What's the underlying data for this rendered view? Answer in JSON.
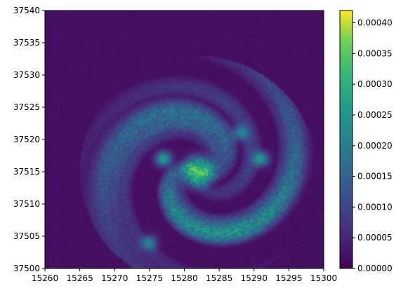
{
  "chart_data": {
    "type": "heatmap",
    "title": "",
    "xlabel": "",
    "ylabel": "",
    "xlim": [
      15260,
      15300
    ],
    "ylim": [
      37500,
      37540
    ],
    "x_ticks": [
      "15260",
      "15265",
      "15270",
      "15275",
      "15280",
      "15285",
      "15290",
      "15295",
      "15300"
    ],
    "y_ticks": [
      "37500",
      "37505",
      "37510",
      "37515",
      "37520",
      "37525",
      "37530",
      "37535",
      "37540"
    ],
    "colormap": "viridis",
    "colorbar": {
      "range": [
        0,
        0.00042
      ],
      "ticks": [
        "0.00000",
        "0.00005",
        "0.00010",
        "0.00015",
        "0.00020",
        "0.00025",
        "0.00030",
        "0.00035",
        "0.00040"
      ]
    },
    "description_hint": "spiral vortex density field centred near (15282, 37515)",
    "features": {
      "center": [
        15282,
        37515
      ],
      "background_level": 2e-05
    }
  }
}
